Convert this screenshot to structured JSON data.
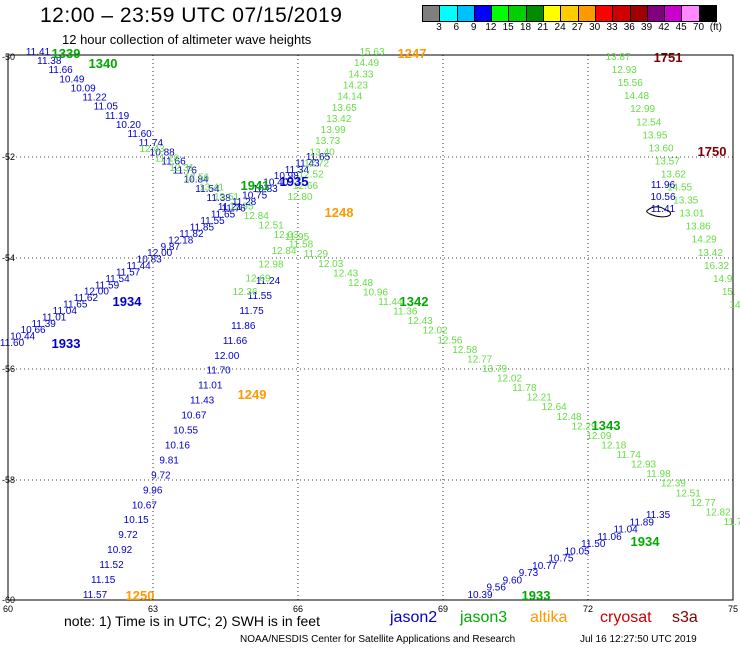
{
  "title": "12:00 – 23:59 UTC 07/15/2019",
  "subtitle": "12 hour collection of altimeter wave heights",
  "legend": {
    "colors": [
      "#7f7f7f",
      "#00ffff",
      "#00bfff",
      "#0000ff",
      "#00ff00",
      "#00d000",
      "#008c00",
      "#ffff00",
      "#ffcc00",
      "#ff9900",
      "#ff0000",
      "#d00000",
      "#a00000",
      "#800080",
      "#cc00cc",
      "#ff88ff",
      "#000000"
    ],
    "labels": [
      "3",
      "6",
      "9",
      "12",
      "15",
      "18",
      "21",
      "24",
      "27",
      "30",
      "33",
      "36",
      "39",
      "42",
      "45",
      "70",
      "(ft)"
    ]
  },
  "axes": {
    "x_labels": [
      "60",
      "63",
      "66",
      "69",
      "72",
      "75"
    ],
    "y_labels": [
      "-50",
      "-52",
      "-54",
      "-56",
      "-58",
      "-60"
    ]
  },
  "note": "note: 1) Time is in UTC; 2) SWH is in feet",
  "satellites": [
    {
      "name": "jason2",
      "color": "#0000cc"
    },
    {
      "name": "jason3",
      "color": "#00aa00"
    },
    {
      "name": "altika",
      "color": "#ff9900"
    },
    {
      "name": "cryosat",
      "color": "#cc0000"
    },
    {
      "name": "s3a",
      "color": "#800000"
    }
  ],
  "credit": "NOAA/NESDIS Center for Satellite Applications and Research",
  "timestamp": "Jul 16 12:27:50 UTC 2019",
  "tracks": [
    {
      "sat": "jason2",
      "color": "#0000cc",
      "values": [
        "11.41",
        "11.38",
        "11.66",
        "10.49",
        "10.09",
        "11.22",
        "11.05",
        "11.19",
        "10.20",
        "11.60",
        "11.74",
        "10.88",
        "11.66",
        "11.76",
        "10.84",
        "11.54",
        "11.38",
        "11.21"
      ],
      "time": "1339",
      "time_color": "#00aa00"
    },
    {
      "sat": "jason3",
      "color": "#66dd44",
      "values": [
        "12.43",
        "11.18",
        "12.31",
        "12.56",
        "13.41",
        "13.51",
        "11.95",
        "12.84",
        "12.51",
        "12.03",
        "11.58",
        "11.29",
        "12.03",
        "12.43",
        "12.48",
        "10.96",
        "11.44",
        "11.36",
        "12.43",
        "12.02",
        "12.56",
        "12.58",
        "12.77",
        "13.79",
        "12.02",
        "11.78",
        "12.21",
        "12.64",
        "12.48",
        "12.29",
        "12.09",
        "12.18",
        "11.74",
        "12.93",
        "11.98",
        "12.39",
        "12.51",
        "12.77",
        "12.82",
        "11.7"
      ]
    },
    {
      "sat": "jason2",
      "color": "#0000cc",
      "values": [
        "11.60",
        "10.44",
        "10.66",
        "11.39",
        "11.01",
        "11.04",
        "11.65",
        "11.62",
        "12.00",
        "11.59",
        "11.54",
        "11.57",
        "11.44",
        "10.83",
        "12.00",
        "9.87",
        "12.18",
        "11.82",
        "11.85",
        "11.55",
        "11.65",
        "11.76",
        "11.28",
        "10.75",
        "10.83",
        "10.40",
        "10.98",
        "11.34",
        "11.43",
        "11.65"
      ],
      "time": "1933",
      "time_color": "#0000cc"
    },
    {
      "sat": "jason3",
      "color": "#66dd44",
      "values": [
        "15.63",
        "14.49",
        "14.33",
        "14.23",
        "14.14",
        "13.65",
        "13.42",
        "13.99",
        "13.73",
        "13.40",
        "12.72",
        "12.52",
        "12.66",
        "12.80"
      ]
    },
    {
      "sat": "jason2",
      "color": "#0000cc",
      "values": [
        "11.57",
        "11.15",
        "11.52",
        "10.92",
        "9.72",
        "10.15",
        "10.67",
        "9.96",
        "9.72",
        "9.81",
        "10.16",
        "10.55",
        "10.67",
        "11.43",
        "11.01",
        "11.70",
        "12.00",
        "11.66",
        "11.86",
        "11.75",
        "11.55",
        "11.24"
      ]
    },
    {
      "sat": "jason3",
      "color": "#66dd44",
      "values": [
        "12.36",
        "12.69",
        "12.98",
        "12.84",
        "11.95"
      ]
    },
    {
      "sat": "jason2",
      "color": "#0000cc",
      "values": [
        "10.39",
        "9.56",
        "9.60",
        "9.73",
        "10.77",
        "10.75",
        "10.05",
        "11.50",
        "11.06",
        "11.04",
        "11.89",
        "11.35"
      ]
    },
    {
      "sat": "jason3",
      "color": "#66dd44",
      "values": [
        "13.87",
        "12.93",
        "15.56",
        "14.48",
        "12.99",
        "12.54",
        "13.95",
        "13.60",
        "13.57",
        "13.62",
        "14.55",
        "13.35",
        "13.01",
        "13.86",
        "14.29",
        "13.42",
        "16.32",
        "14.9",
        "15.",
        "14"
      ]
    },
    {
      "sat": "jason2",
      "color": "#0000cc",
      "values": [
        "11.96",
        "10.56",
        "11.41"
      ]
    }
  ],
  "time_labels": [
    {
      "text": "1339",
      "color": "#00aa00"
    },
    {
      "text": "1340",
      "color": "#00aa00"
    },
    {
      "text": "1247",
      "color": "#ff9900"
    },
    {
      "text": "1751",
      "color": "#800000"
    },
    {
      "text": "1750",
      "color": "#800000"
    },
    {
      "text": "1935",
      "color": "#0000cc"
    },
    {
      "text": "1941",
      "color": "#00aa00"
    },
    {
      "text": "1248",
      "color": "#ff9900"
    },
    {
      "text": "1934",
      "color": "#0000cc"
    },
    {
      "text": "1933",
      "color": "#0000cc"
    },
    {
      "text": "1342",
      "color": "#00aa00"
    },
    {
      "text": "1249",
      "color": "#ff9900"
    },
    {
      "text": "1343",
      "color": "#00aa00"
    },
    {
      "text": "1934",
      "color": "#00aa00"
    },
    {
      "text": "1933",
      "color": "#00aa00"
    },
    {
      "text": "1250",
      "color": "#ff9900"
    }
  ]
}
